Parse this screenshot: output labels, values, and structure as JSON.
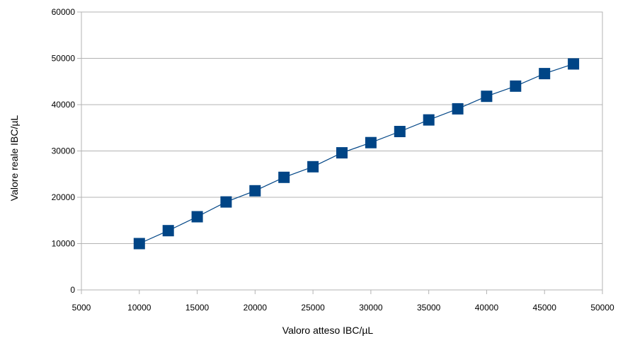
{
  "chart_data": {
    "type": "line",
    "title": "",
    "xlabel": "Valoro atteso  IBC/µL",
    "ylabel": "Valore reale  IBC/µL",
    "xlim": [
      5000,
      50000
    ],
    "ylim": [
      0,
      60000
    ],
    "xticks": [
      "5000",
      "10000",
      "15000",
      "20000",
      "25000",
      "30000",
      "35000",
      "40000",
      "45000",
      "50000"
    ],
    "yticks": [
      "0",
      "10000",
      "20000",
      "30000",
      "40000",
      "50000",
      "60000"
    ],
    "grid": "horizontal",
    "legend": "none",
    "series": [
      {
        "color": "#004586",
        "marker": "square",
        "x": [
          10000,
          12500,
          15000,
          17500,
          20000,
          22500,
          25000,
          27500,
          30000,
          32500,
          35000,
          37500,
          40000,
          42500,
          45000,
          47500
        ],
        "y": [
          10000,
          12800,
          15800,
          19000,
          21400,
          24300,
          26600,
          29600,
          31800,
          34200,
          36700,
          39100,
          41800,
          44000,
          46700,
          48800
        ]
      }
    ]
  }
}
